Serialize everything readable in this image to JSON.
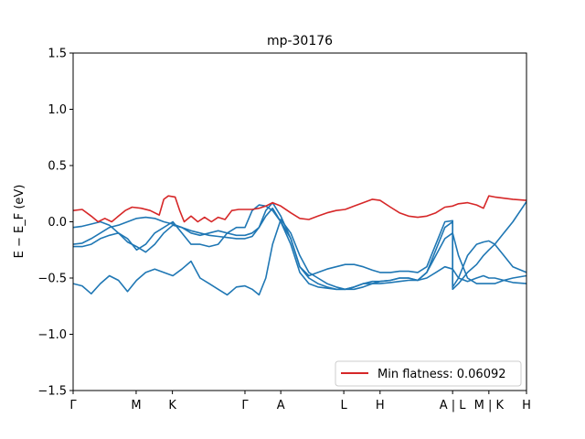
{
  "chart_data": {
    "type": "line",
    "title": "mp-30176",
    "ylabel": "E − E_F (eV)",
    "xlabel": "",
    "ylim": [
      -1.5,
      1.5
    ],
    "xlim": [
      0,
      1
    ],
    "yticks": [
      -1.5,
      -1.0,
      -0.5,
      0.0,
      0.5,
      1.0,
      1.5
    ],
    "ytick_labels": [
      "−1.5",
      "−1.0",
      "−0.5",
      "0.0",
      "0.5",
      "1.0",
      "1.5"
    ],
    "xticks": [
      {
        "label": "Γ",
        "x": 0.0
      },
      {
        "label": "M",
        "x": 0.139
      },
      {
        "label": "K",
        "x": 0.219
      },
      {
        "label": "Γ",
        "x": 0.379
      },
      {
        "label": "A",
        "x": 0.458
      },
      {
        "label": "L",
        "x": 0.597
      },
      {
        "label": "H",
        "x": 0.677
      },
      {
        "label": "A | L",
        "x": 0.837
      },
      {
        "label": "M | K",
        "x": 0.917
      },
      {
        "label": "H",
        "x": 1.0
      }
    ],
    "grid": false,
    "legend": {
      "placement": "lower-right",
      "entries": [
        {
          "label": "Min flatness: 0.06092",
          "color": "#d62728"
        }
      ]
    },
    "colors": {
      "flat_band": "#d62728",
      "bands": "#1f77b4"
    },
    "series": [
      {
        "name": "Min flatness: 0.06092",
        "color": "#d62728",
        "x": [
          0.0,
          0.02,
          0.04,
          0.055,
          0.07,
          0.085,
          0.1,
          0.115,
          0.13,
          0.15,
          0.17,
          0.19,
          0.2,
          0.21,
          0.225,
          0.235,
          0.245,
          0.26,
          0.275,
          0.29,
          0.305,
          0.32,
          0.335,
          0.35,
          0.365,
          0.379,
          0.395,
          0.41,
          0.425,
          0.44,
          0.458,
          0.48,
          0.5,
          0.52,
          0.54,
          0.56,
          0.58,
          0.6,
          0.62,
          0.64,
          0.66,
          0.677,
          0.7,
          0.72,
          0.74,
          0.76,
          0.78,
          0.8,
          0.82,
          0.837,
          0.85,
          0.87,
          0.89,
          0.905,
          0.917,
          0.93,
          0.95,
          0.97,
          1.0
        ],
        "y": [
          0.1,
          0.11,
          0.05,
          0.0,
          0.03,
          0.0,
          0.05,
          0.1,
          0.13,
          0.12,
          0.1,
          0.06,
          0.2,
          0.23,
          0.22,
          0.1,
          0.0,
          0.05,
          0.0,
          0.04,
          0.0,
          0.04,
          0.02,
          0.1,
          0.11,
          0.11,
          0.11,
          0.12,
          0.14,
          0.17,
          0.14,
          0.08,
          0.03,
          0.02,
          0.05,
          0.08,
          0.1,
          0.11,
          0.14,
          0.17,
          0.2,
          0.19,
          0.13,
          0.08,
          0.05,
          0.04,
          0.05,
          0.08,
          0.13,
          0.14,
          0.16,
          0.17,
          0.15,
          0.12,
          0.23,
          0.22,
          0.21,
          0.2,
          0.19
        ]
      },
      {
        "name": "",
        "color": "#1f77b4",
        "x": [
          0.0,
          0.02,
          0.04,
          0.06,
          0.08,
          0.1,
          0.12,
          0.14,
          0.16,
          0.18,
          0.2,
          0.22,
          0.24,
          0.26,
          0.28,
          0.3,
          0.32,
          0.34,
          0.36,
          0.379,
          0.395,
          0.41,
          0.425,
          0.44,
          0.458,
          0.48,
          0.5,
          0.52,
          0.54,
          0.56,
          0.58,
          0.6,
          0.62,
          0.64,
          0.66,
          0.677,
          0.7,
          0.72,
          0.74,
          0.76,
          0.78,
          0.8,
          0.82,
          0.837,
          0.837,
          0.85,
          0.87,
          0.89,
          0.905,
          0.917,
          0.93,
          0.95,
          0.97,
          1.0
        ],
        "y": [
          -0.05,
          -0.04,
          -0.02,
          0.0,
          -0.03,
          -0.1,
          -0.18,
          -0.22,
          -0.27,
          -0.2,
          -0.1,
          -0.03,
          -0.05,
          -0.1,
          -0.12,
          -0.1,
          -0.08,
          -0.1,
          -0.12,
          -0.12,
          -0.1,
          -0.05,
          0.1,
          0.17,
          0.05,
          -0.15,
          -0.4,
          -0.48,
          -0.45,
          -0.42,
          -0.4,
          -0.38,
          -0.38,
          -0.4,
          -0.43,
          -0.45,
          -0.45,
          -0.44,
          -0.44,
          -0.45,
          -0.4,
          -0.2,
          0.0,
          0.01,
          -0.58,
          -0.5,
          -0.3,
          -0.2,
          -0.18,
          -0.17,
          -0.2,
          -0.3,
          -0.4,
          -0.45
        ]
      },
      {
        "name": "",
        "color": "#1f77b4",
        "x": [
          0.0,
          0.02,
          0.04,
          0.06,
          0.08,
          0.1,
          0.12,
          0.14,
          0.16,
          0.18,
          0.2,
          0.22,
          0.24,
          0.26,
          0.28,
          0.3,
          0.32,
          0.34,
          0.36,
          0.379,
          0.395,
          0.41,
          0.425,
          0.44,
          0.458,
          0.48,
          0.5,
          0.52,
          0.54,
          0.56,
          0.58,
          0.6,
          0.62,
          0.64,
          0.66,
          0.677,
          0.7,
          0.72,
          0.74,
          0.76,
          0.78,
          0.8,
          0.82,
          0.837,
          0.837,
          0.85,
          0.87,
          0.89,
          0.905,
          0.917,
          0.93,
          0.95,
          0.97,
          1.0
        ],
        "y": [
          -0.2,
          -0.19,
          -0.15,
          -0.1,
          -0.05,
          -0.03,
          0.0,
          0.03,
          0.04,
          0.03,
          0.0,
          -0.02,
          -0.05,
          -0.08,
          -0.1,
          -0.12,
          -0.13,
          -0.14,
          -0.15,
          -0.15,
          -0.13,
          -0.05,
          0.05,
          0.12,
          0.0,
          -0.2,
          -0.45,
          -0.55,
          -0.58,
          -0.59,
          -0.6,
          -0.6,
          -0.58,
          -0.55,
          -0.53,
          -0.53,
          -0.52,
          -0.5,
          -0.5,
          -0.52,
          -0.45,
          -0.25,
          -0.05,
          0.0,
          -0.6,
          -0.55,
          -0.45,
          -0.38,
          -0.3,
          -0.25,
          -0.2,
          -0.1,
          0.0,
          0.18
        ]
      },
      {
        "name": "",
        "color": "#1f77b4",
        "x": [
          0.0,
          0.02,
          0.04,
          0.06,
          0.08,
          0.1,
          0.12,
          0.14,
          0.16,
          0.18,
          0.2,
          0.22,
          0.24,
          0.26,
          0.28,
          0.3,
          0.32,
          0.34,
          0.36,
          0.379,
          0.395,
          0.41,
          0.425,
          0.44,
          0.458,
          0.48,
          0.5,
          0.52,
          0.54,
          0.56,
          0.58,
          0.6,
          0.62,
          0.64,
          0.66,
          0.677,
          0.7,
          0.72,
          0.74,
          0.76,
          0.78,
          0.8,
          0.82,
          0.837,
          0.85,
          0.87,
          0.89,
          0.905,
          0.917,
          0.93,
          0.95,
          0.97,
          1.0
        ],
        "y": [
          -0.22,
          -0.22,
          -0.2,
          -0.15,
          -0.12,
          -0.1,
          -0.15,
          -0.25,
          -0.2,
          -0.1,
          -0.05,
          0.0,
          -0.1,
          -0.2,
          -0.2,
          -0.22,
          -0.2,
          -0.1,
          -0.05,
          -0.05,
          0.1,
          0.15,
          0.14,
          0.1,
          0.0,
          -0.15,
          -0.4,
          -0.5,
          -0.55,
          -0.58,
          -0.6,
          -0.6,
          -0.58,
          -0.55,
          -0.55,
          -0.53,
          -0.52,
          -0.5,
          -0.5,
          -0.52,
          -0.45,
          -0.3,
          -0.15,
          -0.1,
          -0.3,
          -0.5,
          -0.55,
          -0.55,
          -0.55,
          -0.55,
          -0.52,
          -0.5,
          -0.48
        ]
      },
      {
        "name": "",
        "color": "#1f77b4",
        "x": [
          0.0,
          0.02,
          0.04,
          0.06,
          0.08,
          0.1,
          0.12,
          0.14,
          0.16,
          0.18,
          0.2,
          0.22,
          0.24,
          0.26,
          0.28,
          0.3,
          0.32,
          0.34,
          0.36,
          0.379,
          0.395,
          0.41,
          0.425,
          0.44,
          0.458,
          0.48,
          0.5,
          0.52,
          0.54,
          0.56,
          0.58,
          0.6,
          0.62,
          0.64,
          0.66,
          0.677,
          0.7,
          0.72,
          0.74,
          0.76,
          0.78,
          0.8,
          0.82,
          0.837,
          0.85,
          0.87,
          0.89,
          0.905,
          0.917,
          0.93,
          0.95,
          0.97,
          1.0
        ],
        "y": [
          -0.55,
          -0.57,
          -0.64,
          -0.55,
          -0.48,
          -0.52,
          -0.62,
          -0.52,
          -0.45,
          -0.42,
          -0.45,
          -0.48,
          -0.42,
          -0.35,
          -0.5,
          -0.55,
          -0.6,
          -0.65,
          -0.58,
          -0.57,
          -0.6,
          -0.65,
          -0.5,
          -0.2,
          0.02,
          -0.1,
          -0.3,
          -0.45,
          -0.5,
          -0.55,
          -0.58,
          -0.6,
          -0.6,
          -0.58,
          -0.55,
          -0.55,
          -0.54,
          -0.53,
          -0.52,
          -0.52,
          -0.5,
          -0.45,
          -0.4,
          -0.42,
          -0.5,
          -0.53,
          -0.5,
          -0.48,
          -0.5,
          -0.5,
          -0.52,
          -0.54,
          -0.55
        ]
      }
    ]
  }
}
